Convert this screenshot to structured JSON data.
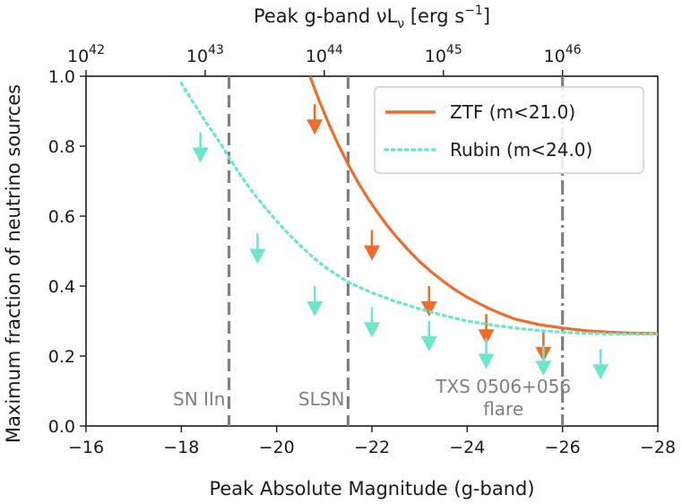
{
  "chart_data": {
    "type": "line",
    "xlabel": "Peak Absolute Magnitude (g-band)",
    "ylabel": "Maximum fraction of neutrino sources",
    "xlim": [
      -16,
      -28
    ],
    "ylim": [
      0.0,
      1.0
    ],
    "x_ticks": [
      -16,
      -18,
      -20,
      -22,
      -24,
      -26,
      -28
    ],
    "x_tick_labels": [
      "−16",
      "−18",
      "−20",
      "−22",
      "−24",
      "−26",
      "−28"
    ],
    "y_ticks": [
      0.0,
      0.2,
      0.4,
      0.6,
      0.8,
      1.0
    ],
    "y_tick_labels": [
      "0.0",
      "0.2",
      "0.4",
      "0.6",
      "0.8",
      "1.0"
    ],
    "top_axis": {
      "label": "Peak g-band νL",
      "label_sub": "ν",
      "label_unit": "[erg s",
      "label_exp": "−1",
      "label_close": "]",
      "ticks": [
        {
          "base": "10",
          "exp": "42",
          "magnitude": -16.0
        },
        {
          "base": "10",
          "exp": "43",
          "magnitude": -18.5
        },
        {
          "base": "10",
          "exp": "44",
          "magnitude": -21.0
        },
        {
          "base": "10",
          "exp": "45",
          "magnitude": -23.5
        },
        {
          "base": "10",
          "exp": "46",
          "magnitude": -26.0
        }
      ]
    },
    "series": [
      {
        "name": "ZTF (m<21.0)",
        "style": "solid",
        "color": "#f06c2d",
        "curve": [
          [
            -20.7,
            1.0
          ],
          [
            -20.9,
            0.928
          ],
          [
            -21.1,
            0.862
          ],
          [
            -21.3,
            0.803
          ],
          [
            -21.5,
            0.748
          ],
          [
            -21.7,
            0.699
          ],
          [
            -21.9,
            0.654
          ],
          [
            -22.1,
            0.614
          ],
          [
            -22.3,
            0.577
          ],
          [
            -22.5,
            0.543
          ],
          [
            -22.75,
            0.505
          ],
          [
            -23.0,
            0.47
          ],
          [
            -23.25,
            0.44
          ],
          [
            -23.5,
            0.413
          ],
          [
            -23.75,
            0.389
          ],
          [
            -24.0,
            0.368
          ],
          [
            -24.25,
            0.35
          ],
          [
            -24.5,
            0.333
          ],
          [
            -24.75,
            0.319
          ],
          [
            -25.0,
            0.306
          ],
          [
            -25.5,
            0.29
          ],
          [
            -26.0,
            0.28
          ],
          [
            -26.5,
            0.272
          ],
          [
            -27.0,
            0.268
          ],
          [
            -27.5,
            0.265
          ],
          [
            -28.0,
            0.264
          ]
        ],
        "upper_limits": [
          [
            -20.8,
            0.92
          ],
          [
            -22.0,
            0.56
          ],
          [
            -23.2,
            0.4
          ],
          [
            -24.4,
            0.32
          ],
          [
            -25.6,
            0.27
          ]
        ]
      },
      {
        "name": "Rubin (m<24.0)",
        "style": "dotted",
        "color": "#6ee6cc",
        "curve": [
          [
            -18.0,
            0.98
          ],
          [
            -18.25,
            0.925
          ],
          [
            -18.5,
            0.872
          ],
          [
            -18.75,
            0.823
          ],
          [
            -19.0,
            0.768
          ],
          [
            -19.25,
            0.715
          ],
          [
            -19.5,
            0.668
          ],
          [
            -19.75,
            0.626
          ],
          [
            -20.0,
            0.586
          ],
          [
            -20.25,
            0.549
          ],
          [
            -20.5,
            0.515
          ],
          [
            -20.75,
            0.484
          ],
          [
            -21.0,
            0.456
          ],
          [
            -21.5,
            0.411
          ],
          [
            -22.0,
            0.381
          ],
          [
            -22.5,
            0.356
          ],
          [
            -23.0,
            0.335
          ],
          [
            -23.5,
            0.316
          ],
          [
            -24.0,
            0.3
          ],
          [
            -24.5,
            0.289
          ],
          [
            -25.0,
            0.28
          ],
          [
            -25.5,
            0.273
          ],
          [
            -26.0,
            0.268
          ],
          [
            -26.5,
            0.265
          ],
          [
            -27.0,
            0.263
          ],
          [
            -28.0,
            0.262
          ]
        ],
        "upper_limits": [
          [
            -18.4,
            0.84
          ],
          [
            -19.6,
            0.55
          ],
          [
            -20.8,
            0.4
          ],
          [
            -22.0,
            0.34
          ],
          [
            -23.2,
            0.3
          ],
          [
            -24.4,
            0.25
          ],
          [
            -25.6,
            0.23
          ],
          [
            -26.8,
            0.22
          ]
        ]
      }
    ],
    "reference_lines": [
      {
        "x": -19.0,
        "label": "SN IIn",
        "style": "dashed"
      },
      {
        "x": -21.5,
        "label": "SLSN",
        "style": "dashed"
      },
      {
        "x": -26.0,
        "label": "TXS 0506+056",
        "label2": "flare",
        "style": "dashdot"
      }
    ],
    "legend": "upper right",
    "grid": false
  }
}
